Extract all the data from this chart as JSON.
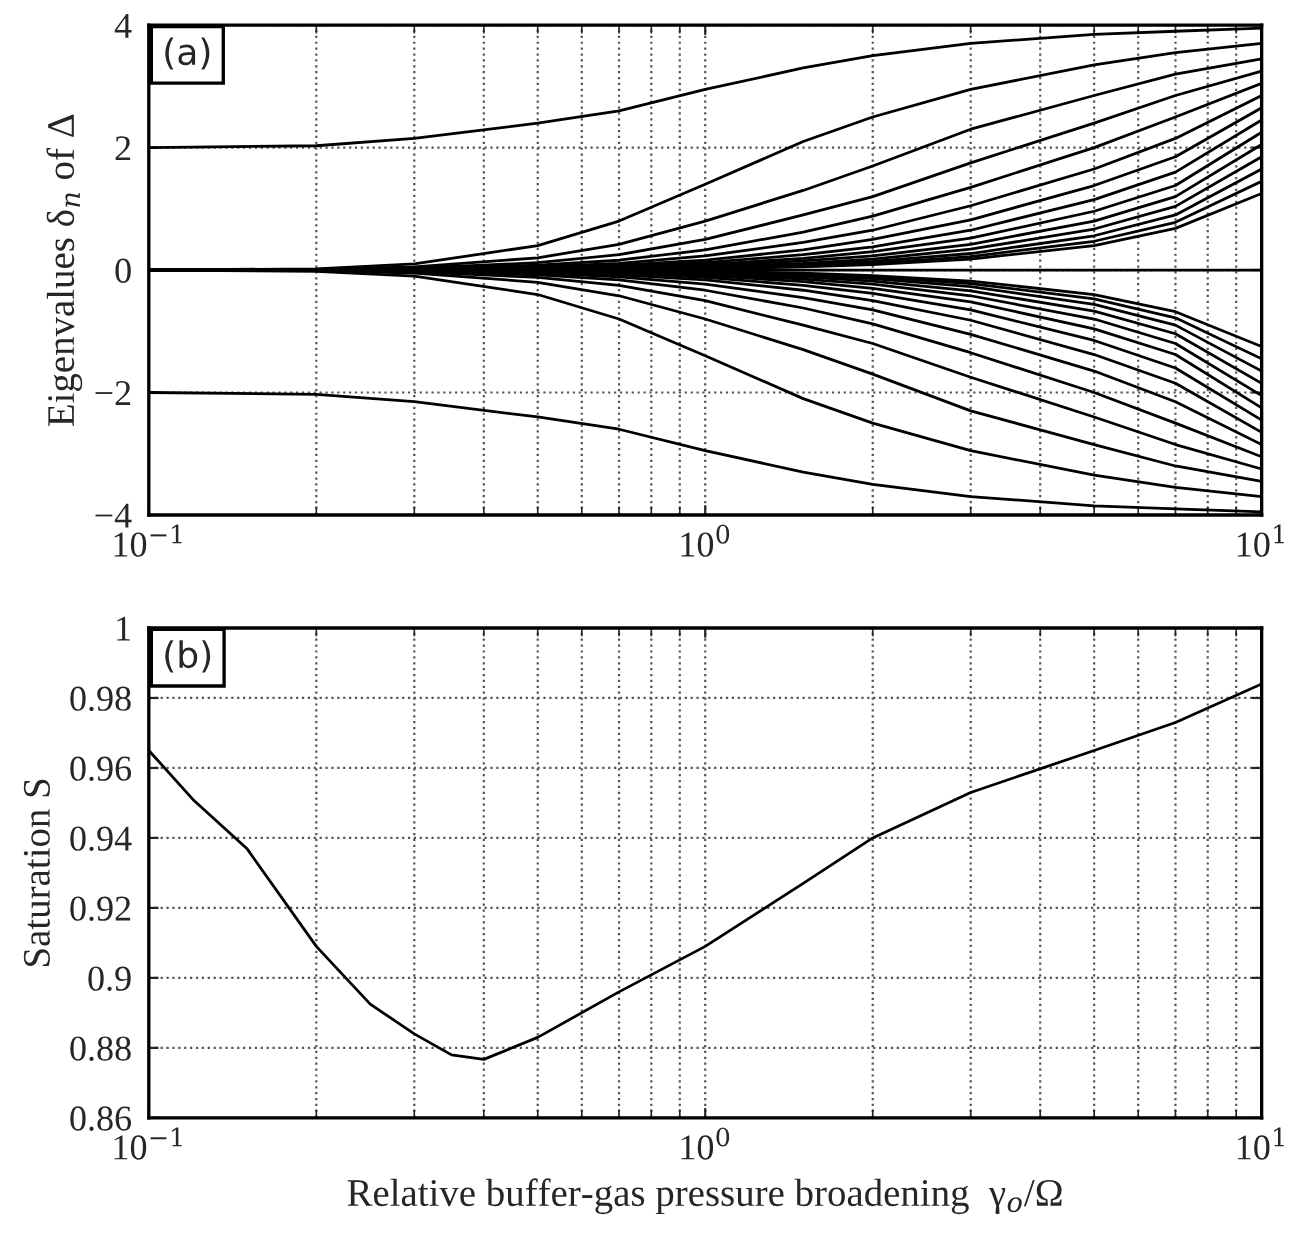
{
  "chart_data": [
    {
      "type": "line",
      "ylabel": "Eigenvalues δ$_{n}$ of Δ",
      "annotations": [
        "(a)"
      ],
      "log": "x",
      "grid": true,
      "tick_labels": "xy",
      "x": [
        0.1,
        0.2,
        0.3,
        0.5,
        0.7,
        1,
        1.5,
        2,
        3,
        5,
        7,
        10
      ],
      "xlim": [
        0.1,
        10
      ],
      "xticks": [
        {
          "value": 0.1,
          "label": "10$^{−1}$"
        },
        {
          "value": 1,
          "label": "10$^{0}$"
        },
        {
          "value": 10,
          "label": "10$^{1}$"
        }
      ],
      "ylim": [
        -4,
        4
      ],
      "yticks": [
        {
          "value": -4,
          "label": "−4"
        },
        {
          "value": -2,
          "label": "−2"
        },
        0,
        2,
        4
      ],
      "series": [
        {
          "color": "#000000",
          "values": [
            2.0,
            2.03,
            2.15,
            2.4,
            2.6,
            2.95,
            3.3,
            3.5,
            3.7,
            3.85,
            3.9,
            3.95
          ]
        },
        {
          "color": "#000000",
          "values": [
            0,
            0.02,
            0.1,
            0.4,
            0.8,
            1.4,
            2.1,
            2.5,
            2.95,
            3.35,
            3.55,
            3.7
          ]
        },
        {
          "color": "#000000",
          "values": [
            0,
            0.01,
            0.05,
            0.2,
            0.42,
            0.8,
            1.3,
            1.7,
            2.3,
            2.85,
            3.2,
            3.45
          ]
        },
        {
          "color": "#000000",
          "values": [
            0,
            0.01,
            0.03,
            0.12,
            0.25,
            0.5,
            0.9,
            1.2,
            1.75,
            2.4,
            2.85,
            3.25
          ]
        },
        {
          "color": "#000000",
          "values": [
            0,
            0,
            0.02,
            0.08,
            0.16,
            0.33,
            0.62,
            0.88,
            1.35,
            2.0,
            2.5,
            3.05
          ]
        },
        {
          "color": "#000000",
          "values": [
            0,
            0,
            0.01,
            0.05,
            0.11,
            0.23,
            0.45,
            0.65,
            1.05,
            1.65,
            2.15,
            2.85
          ]
        },
        {
          "color": "#000000",
          "values": [
            0,
            0,
            0.01,
            0.03,
            0.08,
            0.16,
            0.33,
            0.5,
            0.82,
            1.38,
            1.85,
            2.65
          ]
        },
        {
          "color": "#000000",
          "values": [
            0,
            0,
            0,
            0.02,
            0.05,
            0.12,
            0.25,
            0.38,
            0.65,
            1.15,
            1.6,
            2.45
          ]
        },
        {
          "color": "#000000",
          "values": [
            0,
            0,
            0,
            0.01,
            0.04,
            0.09,
            0.19,
            0.3,
            0.52,
            0.96,
            1.38,
            2.25
          ]
        },
        {
          "color": "#000000",
          "values": [
            0,
            0,
            0,
            0.01,
            0.03,
            0.07,
            0.15,
            0.23,
            0.42,
            0.8,
            1.2,
            2.05
          ]
        },
        {
          "color": "#000000",
          "values": [
            0,
            0,
            0,
            0,
            0.02,
            0.05,
            0.11,
            0.18,
            0.34,
            0.67,
            1.04,
            1.85
          ]
        },
        {
          "color": "#000000",
          "values": [
            0,
            0,
            0,
            0,
            0.01,
            0.04,
            0.09,
            0.14,
            0.27,
            0.56,
            0.9,
            1.65
          ]
        },
        {
          "color": "#000000",
          "values": [
            0,
            0,
            0,
            0,
            0.01,
            0.03,
            0.07,
            0.11,
            0.22,
            0.47,
            0.78,
            1.45
          ]
        },
        {
          "color": "#000000",
          "values": [
            0,
            0,
            0,
            0,
            0.01,
            0.02,
            0.05,
            0.09,
            0.18,
            0.4,
            0.68,
            1.25
          ]
        },
        {
          "color": "#000000",
          "values": [
            0,
            0,
            0,
            0,
            0,
            0,
            0,
            0,
            0,
            0,
            0,
            0
          ]
        },
        {
          "color": "#000000",
          "values": [
            0,
            0,
            0,
            0,
            -0.01,
            -0.02,
            -0.05,
            -0.09,
            -0.18,
            -0.4,
            -0.68,
            -1.25
          ]
        },
        {
          "color": "#000000",
          "values": [
            0,
            0,
            0,
            0,
            -0.01,
            -0.03,
            -0.07,
            -0.11,
            -0.22,
            -0.47,
            -0.78,
            -1.45
          ]
        },
        {
          "color": "#000000",
          "values": [
            0,
            0,
            0,
            0,
            -0.01,
            -0.04,
            -0.09,
            -0.14,
            -0.27,
            -0.56,
            -0.9,
            -1.65
          ]
        },
        {
          "color": "#000000",
          "values": [
            0,
            0,
            0,
            0,
            -0.02,
            -0.05,
            -0.11,
            -0.18,
            -0.34,
            -0.67,
            -1.04,
            -1.85
          ]
        },
        {
          "color": "#000000",
          "values": [
            0,
            0,
            0,
            -0.01,
            -0.03,
            -0.07,
            -0.15,
            -0.23,
            -0.42,
            -0.8,
            -1.2,
            -2.05
          ]
        },
        {
          "color": "#000000",
          "values": [
            0,
            0,
            0,
            -0.01,
            -0.04,
            -0.09,
            -0.19,
            -0.3,
            -0.52,
            -0.96,
            -1.38,
            -2.25
          ]
        },
        {
          "color": "#000000",
          "values": [
            0,
            0,
            0,
            -0.02,
            -0.05,
            -0.12,
            -0.25,
            -0.38,
            -0.65,
            -1.15,
            -1.6,
            -2.45
          ]
        },
        {
          "color": "#000000",
          "values": [
            0,
            0,
            -0.01,
            -0.03,
            -0.08,
            -0.16,
            -0.33,
            -0.5,
            -0.82,
            -1.38,
            -1.85,
            -2.65
          ]
        },
        {
          "color": "#000000",
          "values": [
            0,
            0,
            -0.01,
            -0.05,
            -0.11,
            -0.23,
            -0.45,
            -0.65,
            -1.05,
            -1.65,
            -2.15,
            -2.85
          ]
        },
        {
          "color": "#000000",
          "values": [
            0,
            0,
            -0.02,
            -0.08,
            -0.16,
            -0.33,
            -0.62,
            -0.88,
            -1.35,
            -2.0,
            -2.5,
            -3.05
          ]
        },
        {
          "color": "#000000",
          "values": [
            0,
            -0.01,
            -0.03,
            -0.12,
            -0.25,
            -0.5,
            -0.9,
            -1.2,
            -1.75,
            -2.4,
            -2.85,
            -3.25
          ]
        },
        {
          "color": "#000000",
          "values": [
            0,
            -0.01,
            -0.05,
            -0.2,
            -0.42,
            -0.8,
            -1.3,
            -1.7,
            -2.3,
            -2.85,
            -3.2,
            -3.45
          ]
        },
        {
          "color": "#000000",
          "values": [
            0,
            -0.02,
            -0.1,
            -0.4,
            -0.8,
            -1.4,
            -2.1,
            -2.5,
            -2.95,
            -3.35,
            -3.55,
            -3.7
          ]
        },
        {
          "color": "#000000",
          "values": [
            -2.0,
            -2.03,
            -2.15,
            -2.4,
            -2.6,
            -2.95,
            -3.3,
            -3.5,
            -3.7,
            -3.85,
            -3.9,
            -3.95
          ]
        }
      ]
    },
    {
      "type": "line",
      "xlabel": "Relative buffer-gas pressure broadening  γ$_{o}$/Ω",
      "ylabel": "Saturation S",
      "annotations": [
        "(b)"
      ],
      "log": "x",
      "grid": true,
      "x": [
        0.1,
        0.12,
        0.15,
        0.2,
        0.25,
        0.3,
        0.35,
        0.4,
        0.5,
        0.7,
        1,
        1.5,
        2,
        3,
        5,
        7,
        10
      ],
      "xlim": [
        0.1,
        10
      ],
      "xticks": [
        {
          "value": 0.1,
          "label": "10$^{−1}$"
        },
        {
          "value": 1,
          "label": "10$^{0}$"
        },
        {
          "value": 10,
          "label": "10$^{1}$"
        }
      ],
      "ylim": [
        0.86,
        1
      ],
      "yticks": [
        0.86,
        0.88,
        0.9,
        0.92,
        0.94,
        0.96,
        0.98,
        1
      ],
      "series": [
        {
          "color": "#000000",
          "values": [
            0.965,
            0.951,
            0.937,
            0.909,
            0.8925,
            0.884,
            0.878,
            0.8767,
            0.883,
            0.896,
            0.909,
            0.927,
            0.94,
            0.953,
            0.965,
            0.973,
            0.984
          ]
        }
      ]
    }
  ]
}
